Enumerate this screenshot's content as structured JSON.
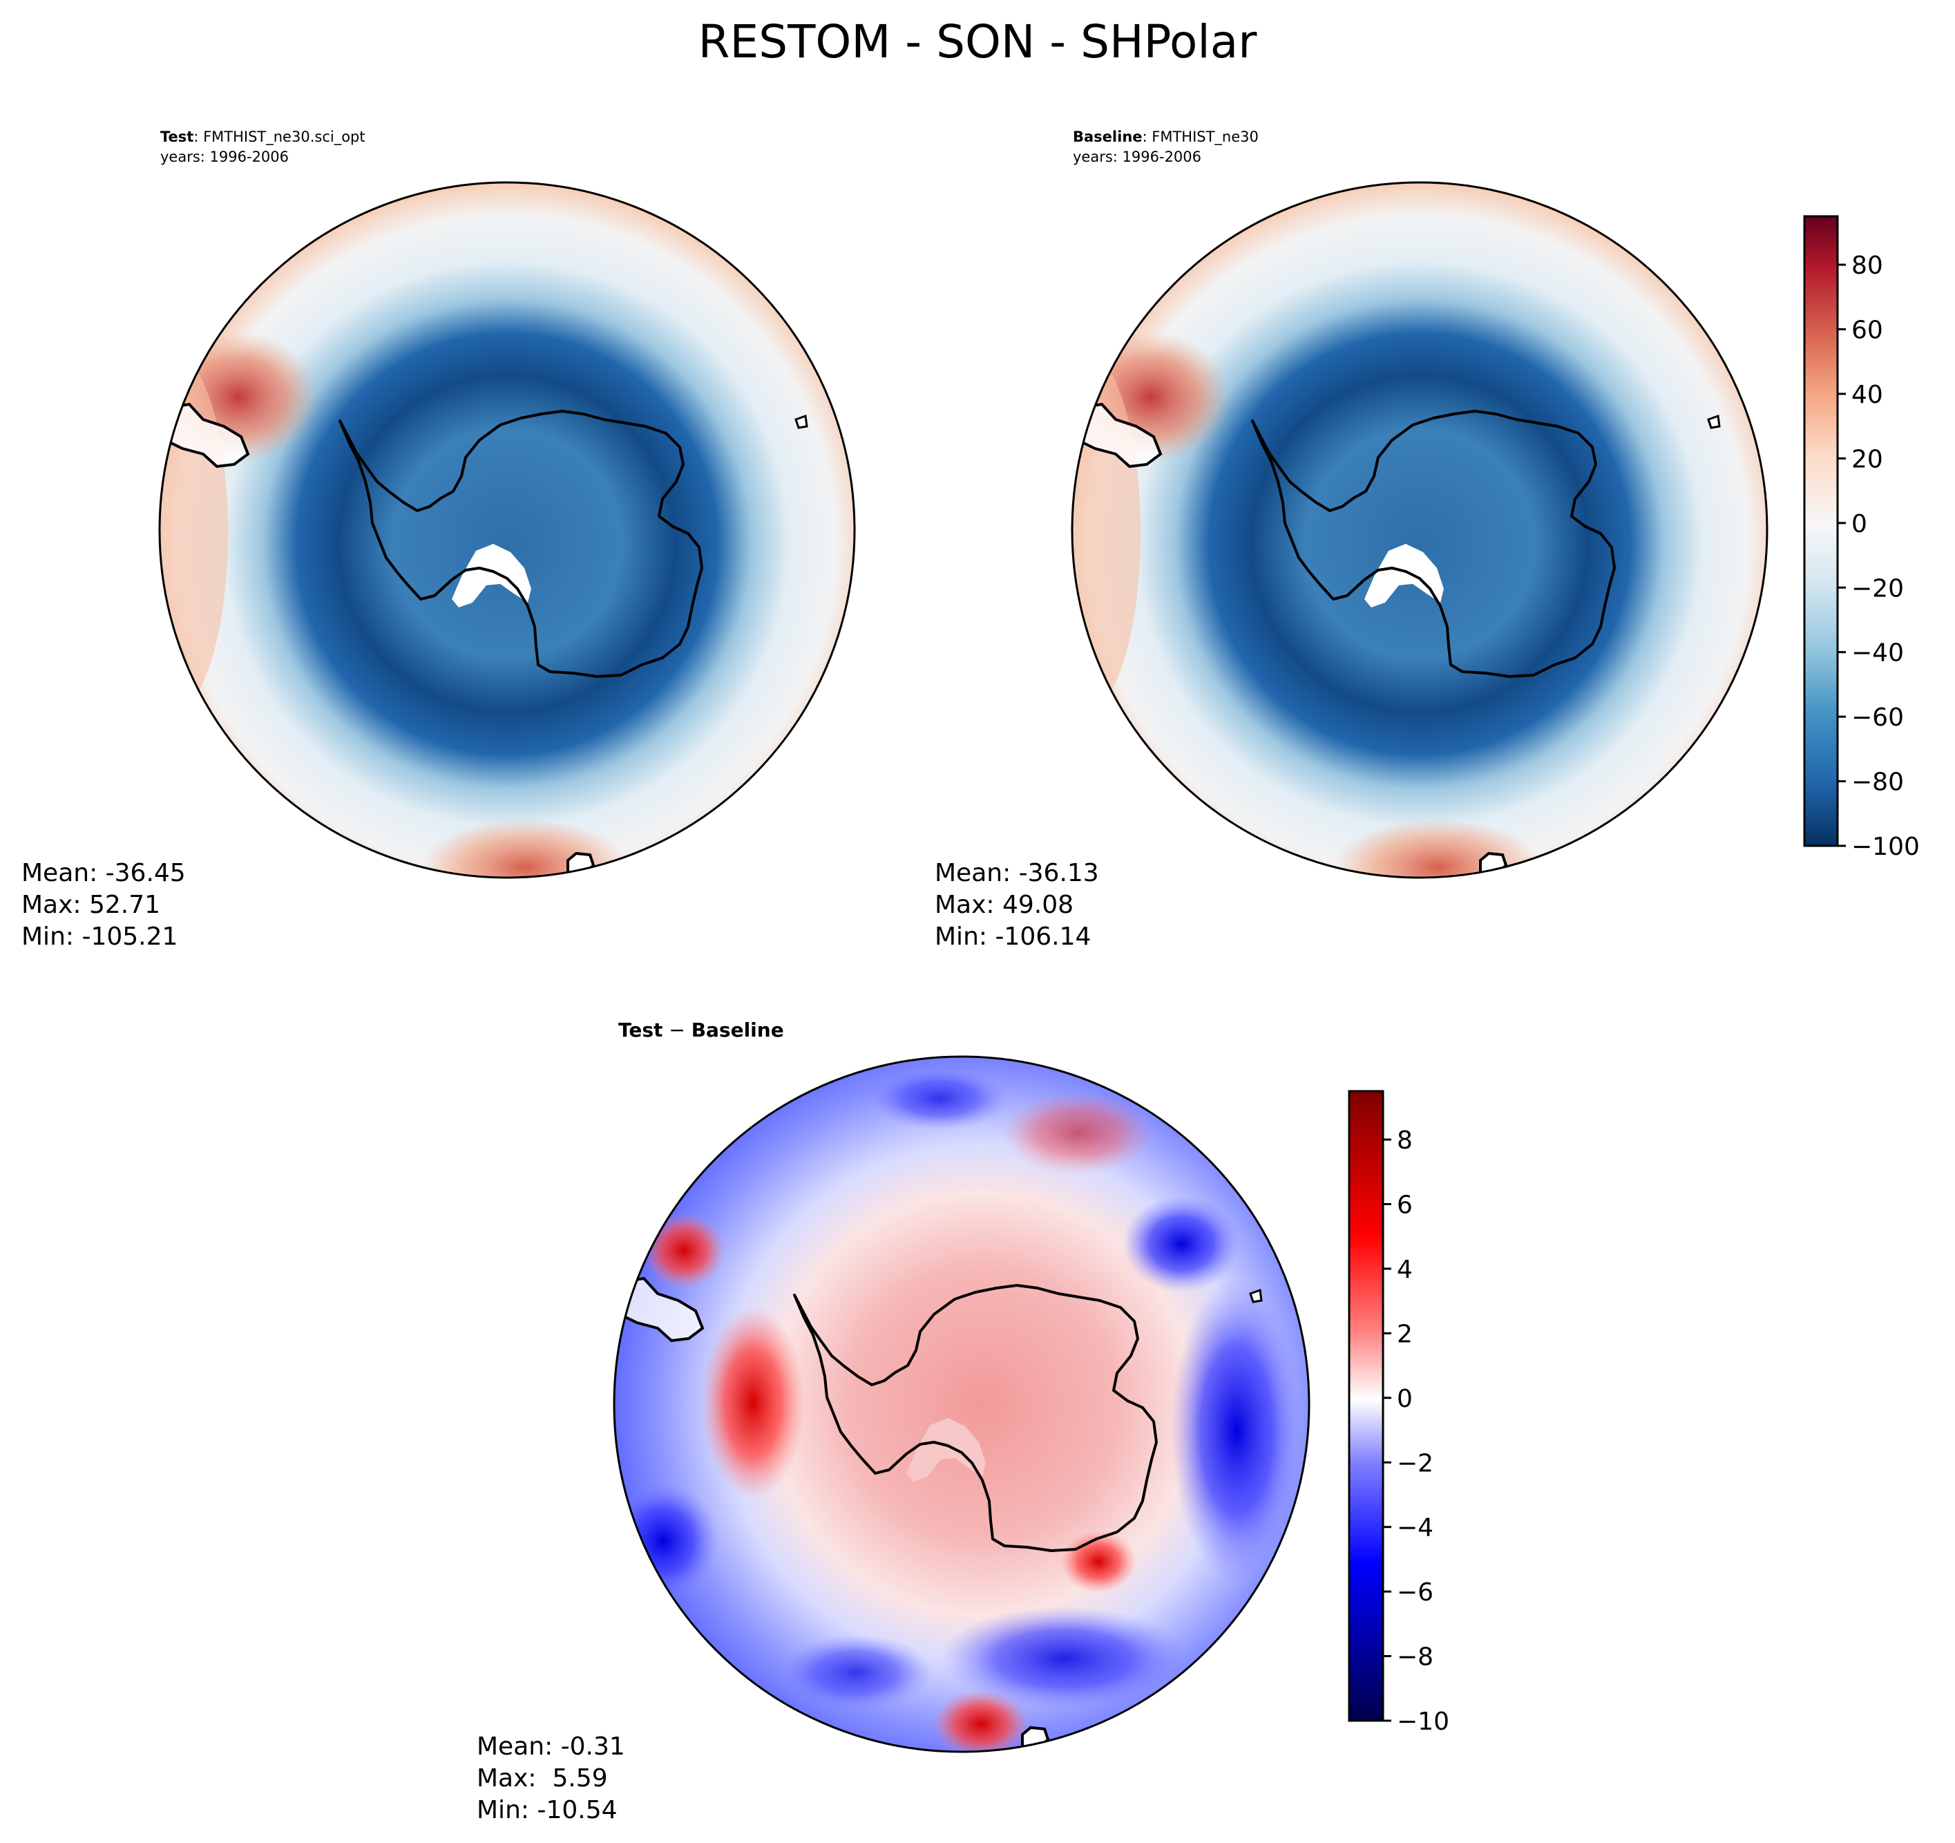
{
  "figure": {
    "title": "RESTOM - SON - SHPolar"
  },
  "panels": {
    "test": {
      "label": "Test",
      "case": ": FMTHIST_ne30.sci_opt",
      "years": "years: 1996-2006",
      "stats": {
        "mean": "Mean: -36.45",
        "max": "Max: 52.71",
        "min": "Min: -105.21"
      }
    },
    "baseline": {
      "label": "Baseline",
      "case": ": FMTHIST_ne30",
      "years": "years: 1996-2006",
      "stats": {
        "mean": "Mean: -36.13",
        "max": "Max: 49.08",
        "min": "Min: -106.14"
      }
    },
    "diff": {
      "label_a": "Test",
      "sep": " − ",
      "label_b": "Baseline",
      "stats": {
        "mean": "Mean: -0.31",
        "max": "Max:  5.59",
        "min": "Min: -10.54"
      }
    }
  },
  "chart_data": [
    {
      "type": "heatmap",
      "name": "Test",
      "projection": "south-polar-stereographic",
      "variable": "RESTOM",
      "season": "SON",
      "colormap": "RdBu_r",
      "stats": {
        "mean": -36.45,
        "max": 52.71,
        "min": -105.21
      }
    },
    {
      "type": "heatmap",
      "name": "Baseline",
      "projection": "south-polar-stereographic",
      "variable": "RESTOM",
      "season": "SON",
      "colormap": "RdBu_r",
      "stats": {
        "mean": -36.13,
        "max": 49.08,
        "min": -106.14
      },
      "colorbar": {
        "vmin": -100,
        "vmax": 95,
        "ticks": [
          -100,
          -80,
          -60,
          -40,
          -20,
          0,
          20,
          40,
          60,
          80
        ],
        "tick_labels": [
          "−100",
          "−80",
          "−60",
          "−40",
          "−20",
          "0",
          "20",
          "40",
          "60",
          "80"
        ],
        "colors": [
          "#053061",
          "#2166ac",
          "#4393c3",
          "#92c5de",
          "#d1e5f0",
          "#f7f7f7",
          "#fddbc7",
          "#f4a582",
          "#d6604d",
          "#b2182b",
          "#67001f"
        ]
      }
    },
    {
      "type": "heatmap",
      "name": "Test - Baseline",
      "projection": "south-polar-stereographic",
      "colormap": "seismic",
      "stats": {
        "mean": -0.31,
        "max": 5.59,
        "min": -10.54
      },
      "colorbar": {
        "vmin": -10,
        "vmax": 9.5,
        "ticks": [
          -10,
          -8,
          -6,
          -4,
          -2,
          0,
          2,
          4,
          6,
          8
        ],
        "tick_labels": [
          "−10",
          "−8",
          "−6",
          "−4",
          "−2",
          "0",
          "2",
          "4",
          "6",
          "8"
        ],
        "colors": [
          "#00004c",
          "#0000ff",
          "#8080ff",
          "#ffffff",
          "#ff8080",
          "#ff0000",
          "#800000"
        ]
      }
    }
  ]
}
